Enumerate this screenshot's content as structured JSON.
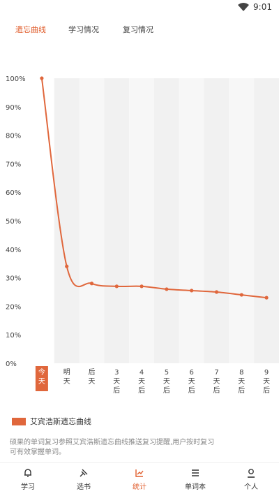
{
  "status_bar": {
    "time": "9:01"
  },
  "tabs": [
    {
      "label": "遗忘曲线",
      "active": true
    },
    {
      "label": "学习情况",
      "active": false
    },
    {
      "label": "复习情况",
      "active": false
    }
  ],
  "chart_data": {
    "type": "line",
    "y_ticks": [
      "100%",
      "90%",
      "80%",
      "70%",
      "60%",
      "50%",
      "40%",
      "30%",
      "20%",
      "10%",
      "0%"
    ],
    "ylim": [
      0,
      100
    ],
    "categories": [
      [
        "今",
        "天"
      ],
      [
        "明",
        "天"
      ],
      [
        "后",
        "天"
      ],
      [
        "3",
        "天",
        "后"
      ],
      [
        "4",
        "天",
        "后"
      ],
      [
        "5",
        "天",
        "后"
      ],
      [
        "6",
        "天",
        "后"
      ],
      [
        "7",
        "天",
        "后"
      ],
      [
        "8",
        "天",
        "后"
      ],
      [
        "9",
        "天",
        "后"
      ]
    ],
    "series": [
      {
        "name": "艾宾浩斯遗忘曲线",
        "values": [
          100,
          34,
          28,
          27,
          27,
          26,
          25.5,
          25,
          24,
          23
        ]
      }
    ],
    "line_color": "#e0673c",
    "highlight_category_index": 0
  },
  "legend": {
    "label": "艾宾浩斯遗忘曲线",
    "color": "#e0673c"
  },
  "description": "硕果的单词复习参照艾宾浩斯遗忘曲线推送复习提醒,用户按时复习可有效掌握单词。",
  "bottom_nav": [
    {
      "label": "学习",
      "icon": "bell-icon",
      "active": false
    },
    {
      "label": "选书",
      "icon": "pin-icon",
      "active": false
    },
    {
      "label": "统计",
      "icon": "chart-icon",
      "active": true
    },
    {
      "label": "单词本",
      "icon": "list-icon",
      "active": false
    },
    {
      "label": "个人",
      "icon": "person-icon",
      "active": false
    }
  ],
  "accent_color": "#e05d2c"
}
